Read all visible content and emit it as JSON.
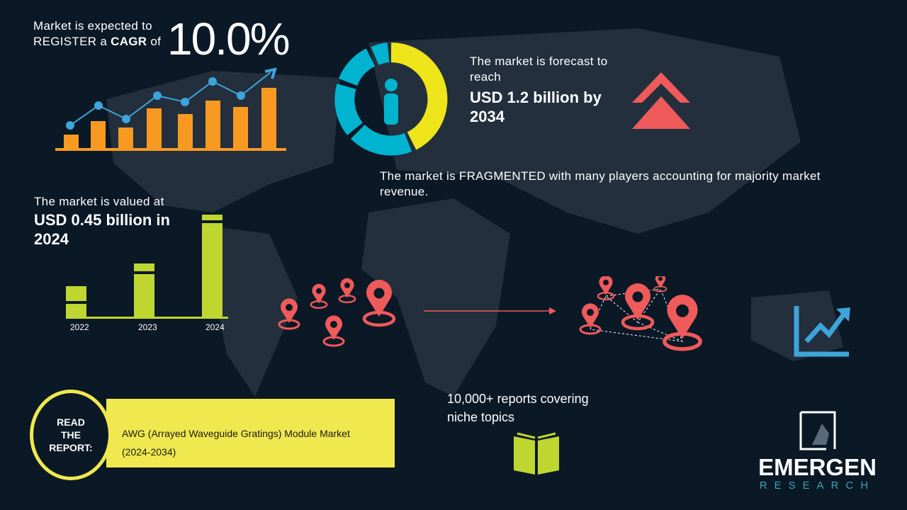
{
  "cagr": {
    "line1": "Market is expected to",
    "line2_pre": "REGISTER a",
    "line2_bold": "CAGR",
    "line2_post": "of",
    "value": "10.0%"
  },
  "forecast": {
    "label": "The market is forecast to reach",
    "value": "USD 1.2 billion by 2034"
  },
  "fragmented": {
    "text": "The market is FRAGMENTED with many players accounting for majority market revenue."
  },
  "valued": {
    "label": "The market is valued at",
    "value": "USD 0.45 billion in 2024"
  },
  "year_bars": [
    {
      "year": "2022"
    },
    {
      "year": "2023"
    },
    {
      "year": "2024"
    }
  ],
  "reports": {
    "text": "10,000+ reports covering niche topics"
  },
  "read_report": {
    "label": "READ THE REPORT:",
    "title": "AWG (Arrayed Waveguide Gratings) Module Market (2024-2034)"
  },
  "logo": {
    "name": "EMERGEN",
    "sub": "RESEARCH"
  },
  "colors": {
    "background": "#0b1826",
    "orange": "#f89a22",
    "blue": "#3ea4dc",
    "yellow": "#ede51a",
    "cyan": "#00b4d0",
    "salmon": "#ef5a5a",
    "green": "#bfd630"
  }
}
